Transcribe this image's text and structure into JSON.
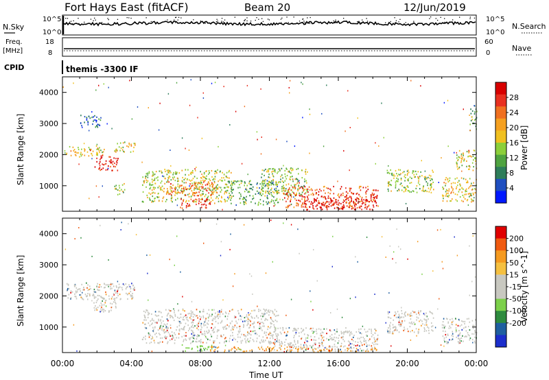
{
  "header": {
    "title": "Fort Hays East (fitACF)",
    "beam": "Beam 20",
    "date": "12/Jun/2019"
  },
  "top_panel": {
    "left_label": "N.Sky",
    "right_label": "N.Search",
    "left_ticks": [
      "10^5",
      "10^0"
    ],
    "right_ticks": [
      "10^5",
      "10^0"
    ]
  },
  "freq_panel": {
    "left_label_1": "Freq.",
    "left_label_2": "[MHz]",
    "right_label": "Nave",
    "left_ticks": [
      "18",
      "8"
    ],
    "right_ticks": [
      "60",
      "0"
    ]
  },
  "cpid_panel": {
    "label": "CPID",
    "text": "themis -3300 IF"
  },
  "chart_data": [
    {
      "type": "heatmap",
      "name": "power-panel",
      "ylabel": "Slant Range [km]",
      "xlabel": "Time UT",
      "ylim": [
        180,
        4500
      ],
      "xlim": [
        0,
        24
      ],
      "y_ticks": [
        1000,
        2000,
        3000,
        4000
      ],
      "x_ticks": [
        "00:00",
        "04:00",
        "08:00",
        "12:00",
        "16:00",
        "20:00",
        "00:00"
      ],
      "colorbar": {
        "label": "Power [dB]",
        "ticks": [
          "4",
          "8",
          "12",
          "16",
          "20",
          "24",
          "28"
        ],
        "colors": [
          "#0018ff",
          "#1f4fc0",
          "#2e7d5a",
          "#4fa340",
          "#8ccf3a",
          "#f0c020",
          "#f5a020",
          "#f07020",
          "#e83020",
          "#d80000"
        ]
      },
      "blobs": [
        {
          "t": [
            0.2,
            2.4
          ],
          "r": [
            1950,
            2300
          ],
          "level": 0.55
        },
        {
          "t": [
            1.8,
            3.2
          ],
          "r": [
            1500,
            2000
          ],
          "level": 0.9
        },
        {
          "t": [
            3.0,
            4.2
          ],
          "r": [
            2100,
            2450
          ],
          "level": 0.55
        },
        {
          "t": [
            3.0,
            3.6
          ],
          "r": [
            700,
            1100
          ],
          "level": 0.45
        },
        {
          "t": [
            1.0,
            2.2
          ],
          "r": [
            2900,
            3300
          ],
          "level": 0.2
        },
        {
          "t": [
            4.6,
            9.8
          ],
          "r": [
            500,
            1550
          ],
          "level": 0.5
        },
        {
          "t": [
            6.0,
            9.0
          ],
          "r": [
            700,
            1150
          ],
          "level": 0.75
        },
        {
          "t": [
            6.8,
            8.8
          ],
          "r": [
            300,
            600
          ],
          "level": 0.85
        },
        {
          "t": [
            9.5,
            12.5
          ],
          "r": [
            400,
            1200
          ],
          "level": 0.35
        },
        {
          "t": [
            11.5,
            14.2
          ],
          "r": [
            700,
            1600
          ],
          "level": 0.45
        },
        {
          "t": [
            12.8,
            18.3
          ],
          "r": [
            300,
            1000
          ],
          "level": 0.8
        },
        {
          "t": [
            14.0,
            18.2
          ],
          "r": [
            250,
            650
          ],
          "level": 0.95
        },
        {
          "t": [
            18.8,
            21.5
          ],
          "r": [
            800,
            1550
          ],
          "level": 0.45
        },
        {
          "t": [
            22.0,
            24.0
          ],
          "r": [
            500,
            1300
          ],
          "level": 0.55
        },
        {
          "t": [
            22.8,
            24.0
          ],
          "r": [
            1500,
            2200
          ],
          "level": 0.5
        },
        {
          "t": [
            23.6,
            24.0
          ],
          "r": [
            2800,
            3600
          ],
          "level": 0.35
        }
      ]
    },
    {
      "type": "heatmap",
      "name": "velocity-panel",
      "ylabel": "Slant Range [km]",
      "xlabel": "Time UT",
      "ylim": [
        180,
        4500
      ],
      "xlim": [
        0,
        24
      ],
      "y_ticks": [
        1000,
        2000,
        3000,
        4000
      ],
      "x_ticks": [
        "00:00",
        "04:00",
        "08:00",
        "12:00",
        "16:00",
        "20:00",
        "00:00"
      ],
      "colorbar": {
        "label": "Velocity [m s^-1]",
        "ticks": [
          "200",
          "100",
          "50",
          "15",
          "-15",
          "-50",
          "-100",
          "-200"
        ],
        "colors": [
          "#1c2ecc",
          "#1f5fa0",
          "#2e8b3e",
          "#7cd04a",
          "#c8c8c0",
          "#c8c8c0",
          "#f5c040",
          "#f59a20",
          "#f05a10",
          "#e00000"
        ]
      },
      "blobs": [
        {
          "t": [
            0.2,
            4.2
          ],
          "r": [
            1900,
            2450
          ],
          "level": 0.5
        },
        {
          "t": [
            1.8,
            3.2
          ],
          "r": [
            1500,
            2000
          ],
          "level": 0.5
        },
        {
          "t": [
            4.6,
            12.5
          ],
          "r": [
            500,
            1600
          ],
          "level": 0.5
        },
        {
          "t": [
            6.8,
            8.8
          ],
          "r": [
            250,
            450
          ],
          "level": 0.32
        },
        {
          "t": [
            8.5,
            14.0
          ],
          "r": [
            220,
            400
          ],
          "level": 0.7
        },
        {
          "t": [
            12.0,
            18.3
          ],
          "r": [
            250,
            1000
          ],
          "level": 0.5
        },
        {
          "t": [
            14.0,
            18.5
          ],
          "r": [
            220,
            350
          ],
          "level": 0.7
        },
        {
          "t": [
            18.8,
            21.5
          ],
          "r": [
            800,
            1550
          ],
          "level": 0.5
        },
        {
          "t": [
            22.0,
            24.0
          ],
          "r": [
            500,
            1300
          ],
          "level": 0.5
        }
      ]
    }
  ]
}
